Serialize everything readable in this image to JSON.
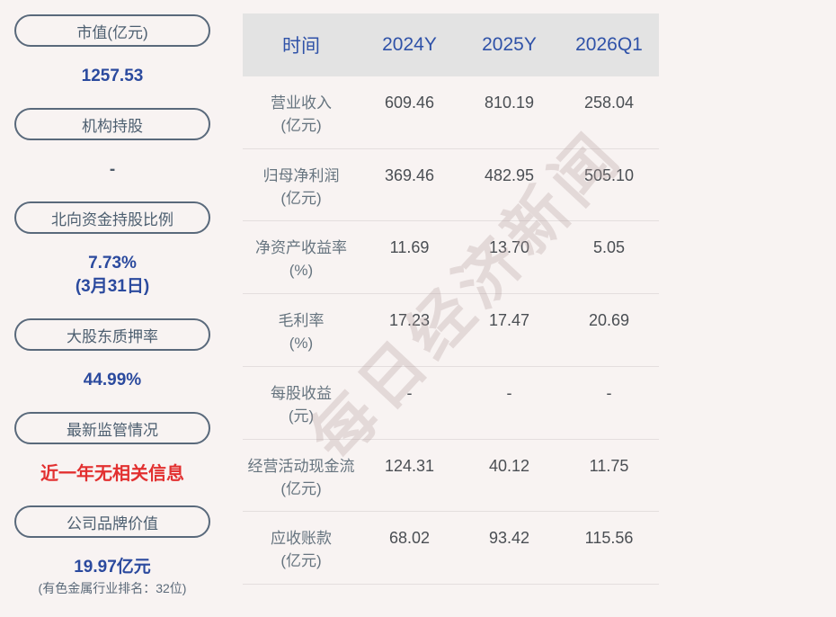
{
  "colors": {
    "page_bg": "#f8f3f2",
    "accent_blue": "#2b4a9e",
    "header_blue": "#2f52a8",
    "alert_red": "#e23030",
    "pill_border": "#59697b",
    "pill_text": "#4d5f70",
    "label_slate": "#66747f",
    "value_dark": "#4a4e53",
    "header_bg": "#e3e3e3",
    "divider": "#e4dede",
    "watermark": "rgba(184,162,162,0.32)"
  },
  "sidebar": {
    "items": [
      {
        "id": "market-cap",
        "label": "市值(亿元)",
        "value_lines": [
          "1257.53"
        ],
        "value_color": "blue",
        "note": ""
      },
      {
        "id": "institutional-holdings",
        "label": "机构持股",
        "value_lines": [
          "-"
        ],
        "value_color": "slate",
        "note": ""
      },
      {
        "id": "northbound-holding-ratio",
        "label": "北向资金持股比例",
        "value_lines": [
          "7.73%",
          "(3月31日)"
        ],
        "value_color": "blue",
        "note": ""
      },
      {
        "id": "major-shareholder-pledge-ratio",
        "label": "大股东质押率",
        "value_lines": [
          "44.99%"
        ],
        "value_color": "blue",
        "note": ""
      },
      {
        "id": "latest-regulatory-status",
        "label": "最新监管情况",
        "value_lines": [
          "近一年无相关信息"
        ],
        "value_color": "red",
        "note": ""
      },
      {
        "id": "company-brand-value",
        "label": "公司品牌价值",
        "value_lines": [
          "19.97亿元"
        ],
        "value_color": "blue",
        "note": "(有色金属行业排名：32位)"
      }
    ]
  },
  "table": {
    "columns": [
      "时间",
      "2024Y",
      "2025Y",
      "2026Q1"
    ],
    "rows": [
      {
        "label": "营业收入",
        "unit": "(亿元)",
        "values": [
          "609.46",
          "810.19",
          "258.04"
        ]
      },
      {
        "label": "归母净利润",
        "unit": "(亿元)",
        "values": [
          "369.46",
          "482.95",
          "505.10"
        ]
      },
      {
        "label": "净资产收益率",
        "unit": "(%)",
        "values": [
          "11.69",
          "13.70",
          "5.05"
        ]
      },
      {
        "label": "毛利率",
        "unit": "(%)",
        "values": [
          "17.23",
          "17.47",
          "20.69"
        ]
      },
      {
        "label": "每股收益",
        "unit": "(元)",
        "values": [
          "-",
          "-",
          "-"
        ]
      },
      {
        "label": "经营活动现金流",
        "unit": "(亿元)",
        "values": [
          "124.31",
          "40.12",
          "11.75"
        ]
      },
      {
        "label": "应收账款",
        "unit": "(亿元)",
        "values": [
          "68.02",
          "93.42",
          "115.56"
        ]
      }
    ]
  },
  "watermark": {
    "text": "每日经济新闻"
  }
}
